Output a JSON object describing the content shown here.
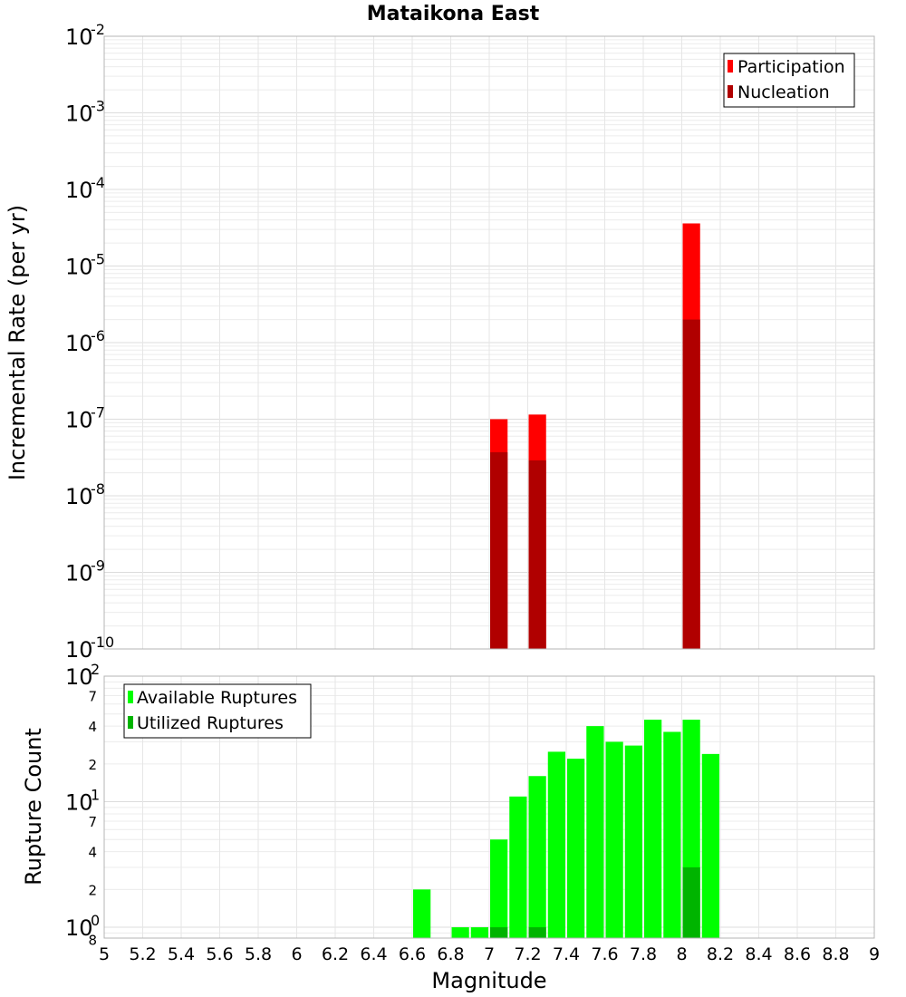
{
  "title": "Mataikona East",
  "chart_data": [
    {
      "type": "bar",
      "title": "Mataikona East",
      "xlabel": "Magnitude",
      "ylabel": "Incremental Rate (per yr)",
      "yscale": "log",
      "xlim": [
        5,
        9
      ],
      "ylim": [
        1e-10,
        0.01
      ],
      "bar_width": 0.1,
      "grid": true,
      "legend_position": "top-right",
      "x_ticks": [
        "5",
        "5.2",
        "5.4",
        "5.6",
        "5.8",
        "6",
        "6.2",
        "6.4",
        "6.6",
        "6.8",
        "7",
        "7.2",
        "7.4",
        "7.6",
        "7.8",
        "8",
        "8.2",
        "8.4",
        "8.6",
        "8.8",
        "9"
      ],
      "y_ticks": [
        {
          "base": "10",
          "exp": "-2"
        },
        {
          "base": "10",
          "exp": "-3"
        },
        {
          "base": "10",
          "exp": "-4"
        },
        {
          "base": "10",
          "exp": "-5"
        },
        {
          "base": "10",
          "exp": "-6"
        },
        {
          "base": "10",
          "exp": "-7"
        },
        {
          "base": "10",
          "exp": "-8"
        },
        {
          "base": "10",
          "exp": "-9"
        },
        {
          "base": "10",
          "exp": "-10"
        }
      ],
      "series": [
        {
          "name": "Participation",
          "color": "#ff0000",
          "points": [
            {
              "x": 7.05,
              "y": 1e-07
            },
            {
              "x": 7.25,
              "y": 1.15e-07
            },
            {
              "x": 8.05,
              "y": 3.6e-05
            }
          ]
        },
        {
          "name": "Nucleation",
          "color": "#b00000",
          "points": [
            {
              "x": 7.05,
              "y": 3.7e-08
            },
            {
              "x": 7.25,
              "y": 2.9e-08
            },
            {
              "x": 8.05,
              "y": 2e-06
            }
          ]
        }
      ]
    },
    {
      "type": "bar",
      "xlabel": "Magnitude",
      "ylabel": "Rupture Count",
      "yscale": "log",
      "xlim": [
        5,
        9
      ],
      "ylim": [
        0.82,
        100
      ],
      "bar_width": 0.1,
      "grid": true,
      "legend_position": "top-left",
      "x_ticks": [
        "5",
        "5.2",
        "5.4",
        "5.6",
        "5.8",
        "6",
        "6.2",
        "6.4",
        "6.6",
        "6.8",
        "7",
        "7.2",
        "7.4",
        "7.6",
        "7.8",
        "8",
        "8.2",
        "8.4",
        "8.6",
        "8.8",
        "9"
      ],
      "y_ticks": [
        {
          "base": "10",
          "exp": "2"
        },
        {
          "base": "10",
          "exp": "1"
        },
        {
          "base": "10",
          "exp": "0"
        }
      ],
      "y_minor_ticks": [
        "7",
        "4",
        "2",
        "7",
        "4",
        "2",
        "8"
      ],
      "series": [
        {
          "name": "Available Ruptures",
          "color": "#00ff00",
          "points": [
            {
              "x": 6.65,
              "y": 2
            },
            {
              "x": 6.85,
              "y": 1
            },
            {
              "x": 6.95,
              "y": 1
            },
            {
              "x": 7.05,
              "y": 5
            },
            {
              "x": 7.15,
              "y": 11
            },
            {
              "x": 7.25,
              "y": 16
            },
            {
              "x": 7.35,
              "y": 25
            },
            {
              "x": 7.45,
              "y": 22
            },
            {
              "x": 7.55,
              "y": 40
            },
            {
              "x": 7.65,
              "y": 30
            },
            {
              "x": 7.75,
              "y": 28
            },
            {
              "x": 7.85,
              "y": 45
            },
            {
              "x": 7.95,
              "y": 36
            },
            {
              "x": 8.05,
              "y": 45
            },
            {
              "x": 8.15,
              "y": 24
            }
          ]
        },
        {
          "name": "Utilized Ruptures",
          "color": "#00b400",
          "points": [
            {
              "x": 7.05,
              "y": 1
            },
            {
              "x": 7.25,
              "y": 1
            },
            {
              "x": 8.05,
              "y": 3
            }
          ]
        }
      ]
    }
  ]
}
